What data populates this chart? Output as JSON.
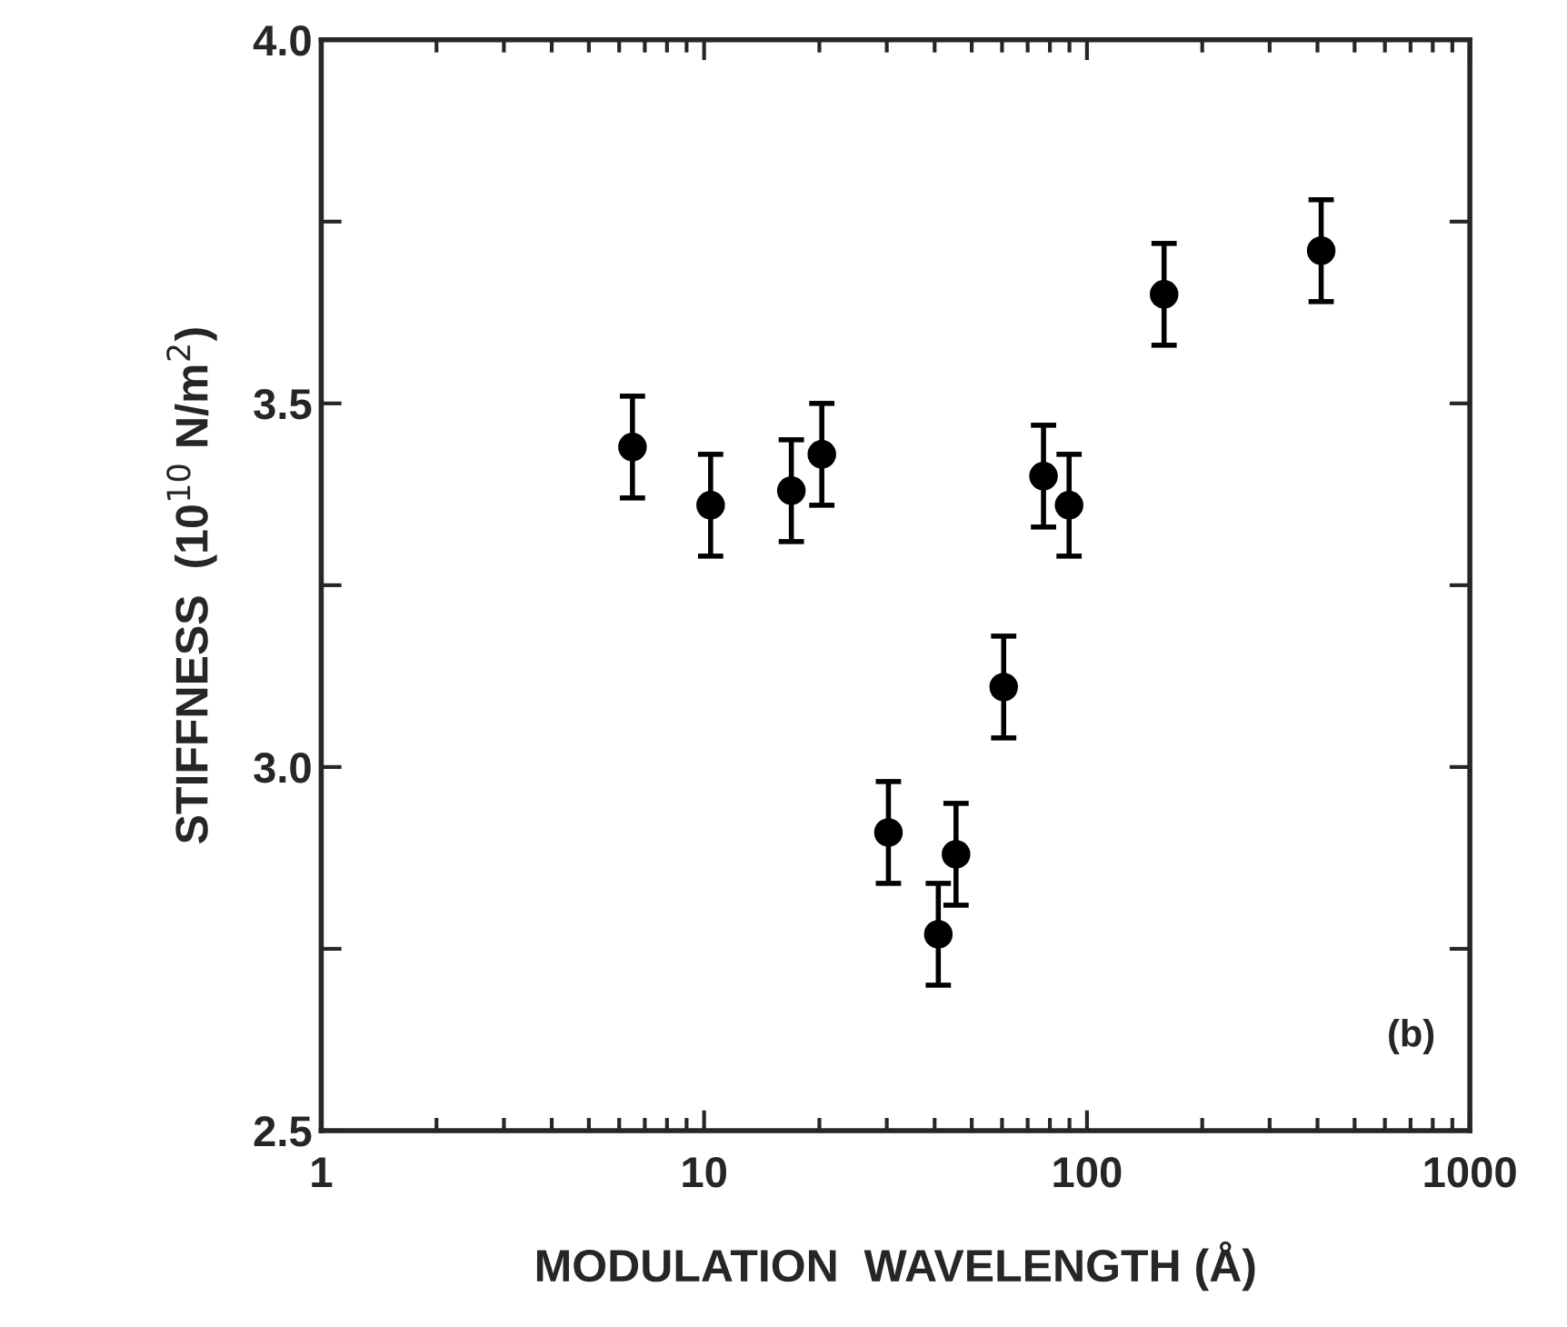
{
  "chart_data": {
    "type": "scatter",
    "xlabel": "MODULATION  WAVELENGTH (Å)",
    "ylabel": "STIFFNESS  (10$^{10}$ N/m$^{2}$)",
    "log": "x",
    "xlim": [
      1,
      1000
    ],
    "xticks": [
      1,
      10,
      100,
      1000
    ],
    "ylim": [
      2.5,
      4.0
    ],
    "yticks": [
      {
        "value": 2.5,
        "label": "2.5"
      },
      {
        "value": 2.75,
        "label": null
      },
      {
        "value": 3.0,
        "label": "3.0"
      },
      {
        "value": 3.25,
        "label": null
      },
      {
        "value": 3.5,
        "label": "3.5"
      },
      {
        "value": 3.75,
        "label": null
      },
      {
        "value": 4.0,
        "label": "4.0"
      }
    ],
    "grid": false,
    "legend": false,
    "marker": "circle",
    "annotations": [
      "(b)"
    ],
    "series": [
      {
        "color": "#000000",
        "x": [
          6.5,
          10.4,
          16.9,
          20.3,
          30.3,
          40.9,
          45.5,
          60.6,
          77,
          89.8,
          159,
          409
        ],
        "values": [
          3.44,
          3.36,
          3.38,
          3.43,
          2.91,
          2.77,
          2.88,
          3.11,
          3.4,
          3.36,
          3.65,
          3.71
        ],
        "errors": [
          0.07,
          0.07,
          0.07,
          0.07,
          0.07,
          0.07,
          0.07,
          0.07,
          0.07,
          0.07,
          0.07,
          0.07
        ]
      }
    ]
  }
}
